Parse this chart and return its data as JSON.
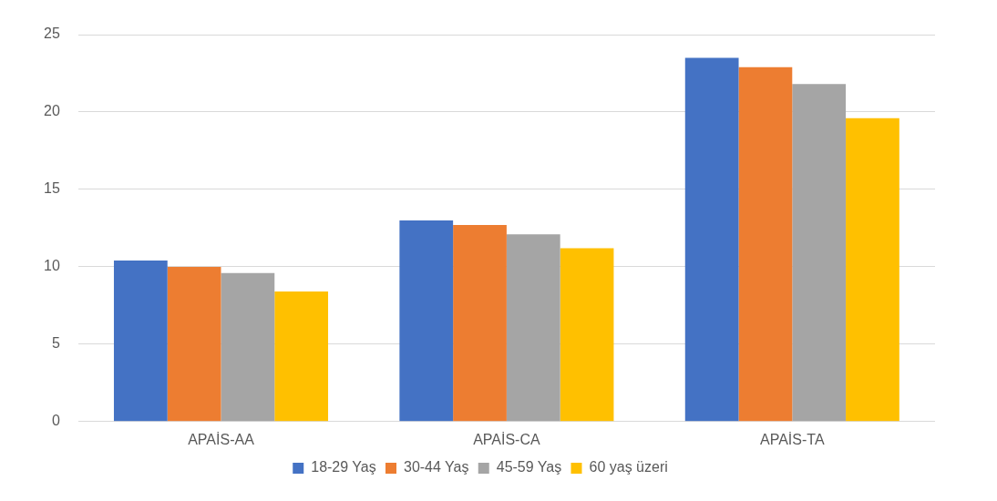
{
  "chart_data": {
    "type": "bar",
    "categories": [
      "APAİS-AA",
      "APAİS-CA",
      "APAİS-TA"
    ],
    "series": [
      {
        "name": "18-29 Yaş",
        "color": "#4472c4",
        "values": [
          10.4,
          13.0,
          23.5
        ]
      },
      {
        "name": "30-44 Yaş",
        "color": "#ed7d31",
        "values": [
          10.0,
          12.7,
          22.9
        ]
      },
      {
        "name": "45-59 Yaş",
        "color": "#a5a5a5",
        "values": [
          9.6,
          12.1,
          21.8
        ]
      },
      {
        "name": "60 yaş üzeri",
        "color": "#ffc000",
        "values": [
          8.4,
          11.2,
          19.6
        ]
      }
    ],
    "ylim": [
      0,
      25
    ],
    "yticks": [
      0,
      5,
      10,
      15,
      20,
      25
    ],
    "grid": "y",
    "legend": "bottom"
  }
}
